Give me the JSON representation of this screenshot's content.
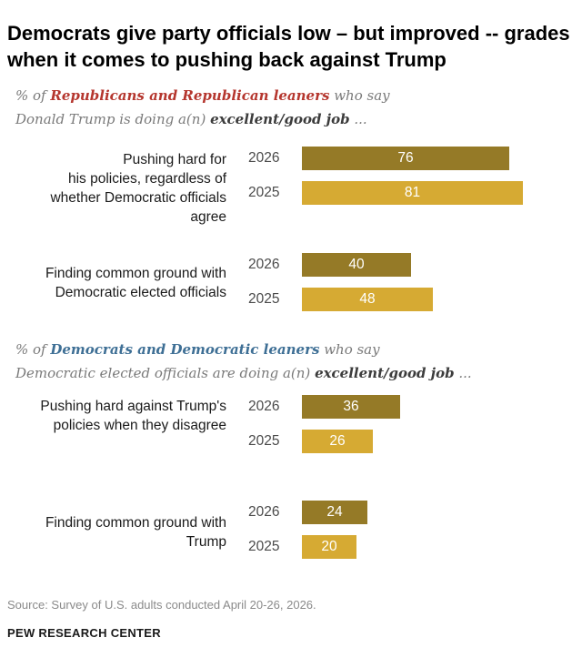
{
  "title": "Democrats give party officials low – but improved -- grades when it comes to pushing back against Trump",
  "panels": [
    {
      "sub_line1": {
        "pre": "% of ",
        "group": "Republicans and Republican leaners",
        "post": " who say"
      },
      "sub_line2": {
        "pre": "Donald Trump is doing a(n) ",
        "bold": "excellent/good job",
        "post": " ..."
      }
    },
    {
      "sub_line1": {
        "pre": "% of ",
        "group": "Democrats and Democratic leaners",
        "post": " who say"
      },
      "sub_line2": {
        "pre": "Democratic elected officials are doing a(n) ",
        "bold": "excellent/good job",
        "post": " ..."
      }
    }
  ],
  "colors": {
    "y2026": "#957a27",
    "y2025": "#d6aa33",
    "republican": "#b5362e",
    "democrat": "#3e6f95"
  },
  "chart_data": {
    "type": "bar",
    "orientation": "horizontal",
    "categories": [
      "Pushing hard for his policies, regardless of whether Democratic officials agree",
      "Finding common ground with Democratic elected officials",
      "Pushing hard against Trump's policies when they disagree",
      "Finding common ground with Trump"
    ],
    "series": [
      {
        "name": "2026",
        "values": [
          76,
          40,
          36,
          24
        ]
      },
      {
        "name": "2025",
        "values": [
          81,
          48,
          26,
          20
        ]
      }
    ],
    "xlim": [
      0,
      100
    ],
    "grid": false
  },
  "source": "Source: Survey of U.S. adults conducted April 20-26, 2026.",
  "footer": "PEW RESEARCH CENTER"
}
